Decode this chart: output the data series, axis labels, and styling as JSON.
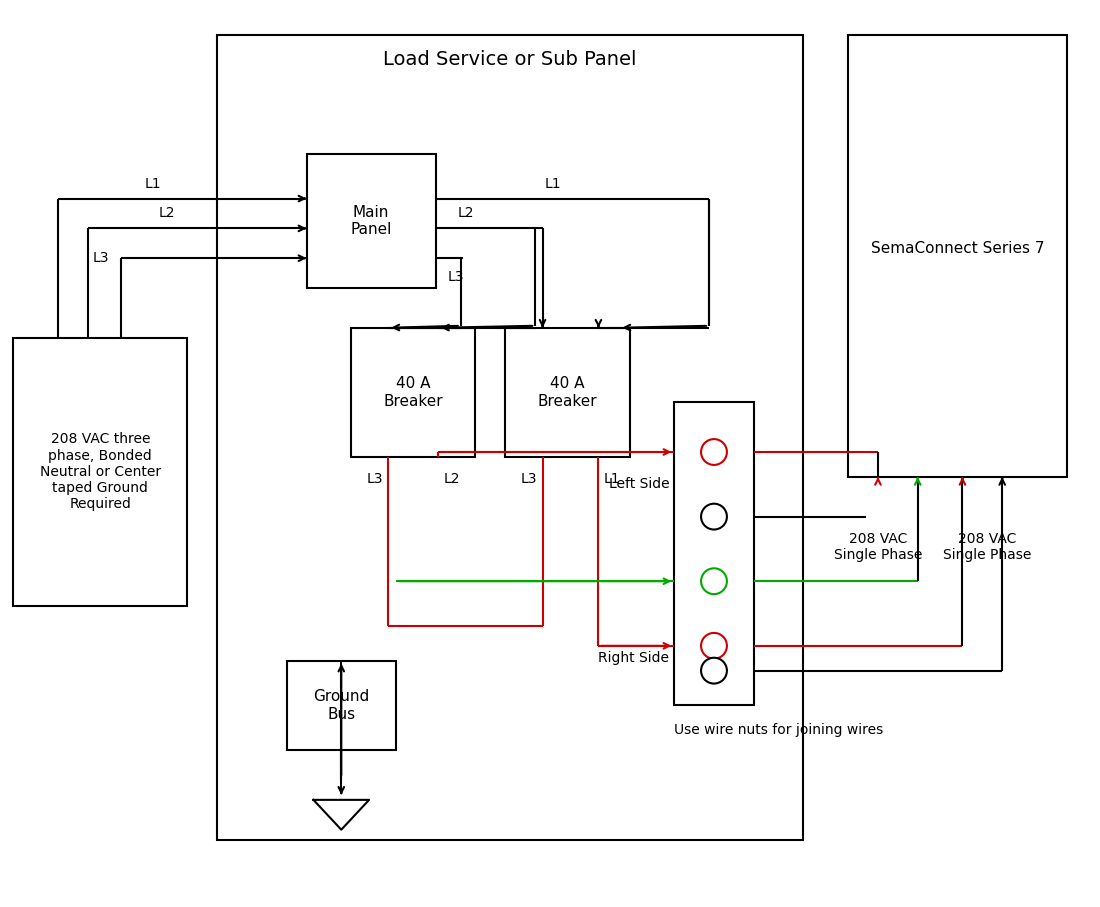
{
  "bg_color": "#ffffff",
  "line_color": "#000000",
  "red_color": "#cc0000",
  "green_color": "#00aa00",
  "figsize": [
    11.0,
    9.07
  ],
  "dpi": 100,
  "title": "Load Service or Sub Panel",
  "semaconnect_title": "SemaConnect Series 7",
  "box_208vac": "208 VAC three\nphase, Bonded\nNeutral or Center\ntaped Ground\nRequired",
  "main_panel_label": "Main\nPanel",
  "breaker1_label": "40 A\nBreaker",
  "breaker2_label": "40 A\nBreaker",
  "ground_bus_label": "Ground\nBus",
  "left_side_label": "Left Side",
  "right_side_label": "Right Side",
  "wire_nut_label": "Use wire nuts for joining wires",
  "vac_left_label": "208 VAC\nSingle Phase",
  "vac_right_label": "208 VAC\nSingle Phase",
  "lw": 1.5,
  "fs_title": 14,
  "fs_label": 11,
  "fs_small": 10,
  "circle_r": 0.13
}
